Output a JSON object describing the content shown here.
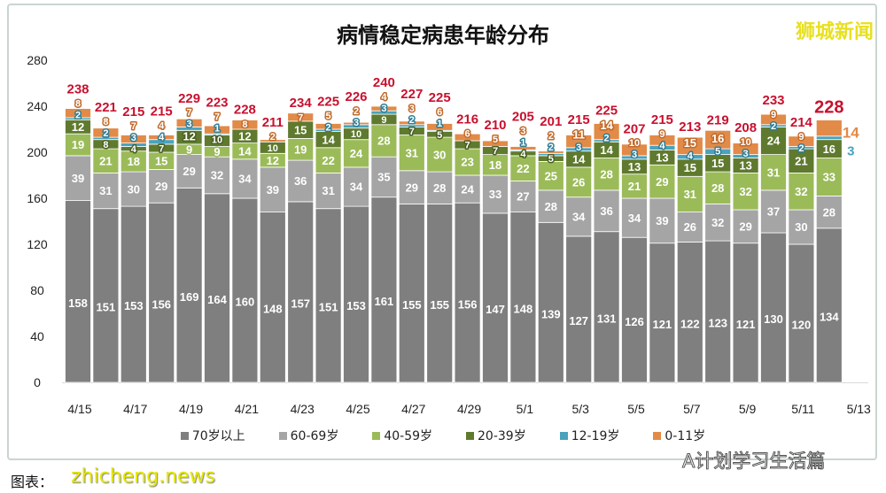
{
  "title": "病情稳定病患年龄分布",
  "watermarks": {
    "top_right": "狮城新闻",
    "bottom_left": "zhicheng.news",
    "bottom_right": "A计划学习生活篇"
  },
  "caption": "图表：",
  "colors": {
    "70+": "#7f7f7f",
    "60-69": "#a5a5a5",
    "40-59": "#9bbb59",
    "20-39": "#5f7a2e",
    "12-19": "#4aa3bd",
    "0-11": "#e28a48",
    "total": "#c8102e"
  },
  "chart_data": {
    "type": "bar",
    "stacked": true,
    "title": "病情稳定病患年龄分布",
    "categories": [
      "4/15",
      "4/16",
      "4/17",
      "4/18",
      "4/19",
      "4/20",
      "4/21",
      "4/22",
      "4/23",
      "4/24",
      "4/25",
      "4/26",
      "4/27",
      "4/28",
      "4/29",
      "4/30",
      "5/1",
      "5/2",
      "5/3",
      "5/4",
      "5/5",
      "5/6",
      "5/7",
      "5/8",
      "5/9",
      "5/10",
      "5/11",
      "5/12"
    ],
    "x_tick_labels": [
      "4/15",
      "4/17",
      "4/19",
      "4/21",
      "4/23",
      "4/25",
      "4/27",
      "4/29",
      "5/1",
      "5/3",
      "5/5",
      "5/7",
      "5/9",
      "5/11",
      "5/13"
    ],
    "ylim": [
      0,
      280
    ],
    "y_ticks": [
      0,
      40,
      80,
      120,
      160,
      200,
      240,
      280
    ],
    "grid": false,
    "legend_position": "bottom",
    "series": [
      {
        "name": "70岁以上",
        "values": [
          158,
          151,
          153,
          156,
          169,
          164,
          160,
          148,
          157,
          151,
          153,
          161,
          155,
          155,
          156,
          147,
          148,
          139,
          127,
          131,
          126,
          121,
          122,
          123,
          121,
          130,
          120,
          134
        ]
      },
      {
        "name": "60-69岁",
        "values": [
          39,
          31,
          30,
          29,
          29,
          32,
          34,
          39,
          36,
          31,
          34,
          35,
          29,
          28,
          24,
          33,
          27,
          28,
          34,
          36,
          34,
          39,
          26,
          32,
          29,
          37,
          30,
          28
        ]
      },
      {
        "name": "40-59岁",
        "values": [
          19,
          21,
          18,
          15,
          9,
          9,
          14,
          12,
          19,
          22,
          24,
          28,
          31,
          30,
          23,
          18,
          22,
          25,
          26,
          28,
          21,
          29,
          31,
          28,
          32,
          31,
          32,
          33
        ]
      },
      {
        "name": "20-39岁",
        "values": [
          12,
          8,
          4,
          7,
          12,
          10,
          12,
          10,
          15,
          14,
          10,
          9,
          7,
          5,
          7,
          7,
          4,
          5,
          14,
          14,
          13,
          13,
          15,
          15,
          13,
          24,
          21,
          16
        ]
      },
      {
        "name": "12-19岁",
        "values": [
          2,
          2,
          3,
          4,
          3,
          1,
          0,
          0,
          0,
          2,
          3,
          3,
          2,
          1,
          0,
          0,
          1,
          2,
          3,
          2,
          3,
          4,
          4,
          5,
          3,
          2,
          2,
          3
        ]
      },
      {
        "name": "0-11岁",
        "values": [
          8,
          8,
          7,
          4,
          7,
          7,
          8,
          2,
          7,
          5,
          2,
          4,
          3,
          6,
          6,
          5,
          3,
          2,
          11,
          14,
          10,
          9,
          15,
          16,
          10,
          9,
          9,
          14
        ]
      }
    ],
    "totals": [
      238,
      221,
      215,
      215,
      229,
      223,
      228,
      211,
      234,
      225,
      226,
      240,
      227,
      225,
      216,
      210,
      205,
      201,
      215,
      225,
      207,
      215,
      213,
      219,
      208,
      233,
      214,
      228
    ]
  }
}
